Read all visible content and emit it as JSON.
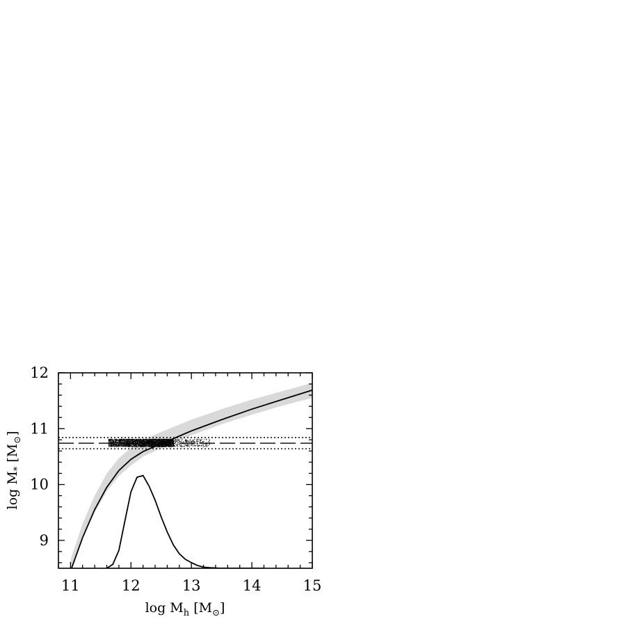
{
  "chart_data": {
    "type": "line",
    "xlabel": "log M_h [M_⊙]",
    "ylabel": "log M_* [M_⊙]",
    "xlabel_parts": {
      "main": "log M",
      "sub": "h",
      "unit_open": " [M",
      "unit_sub": "⊙",
      "unit_close": "]"
    },
    "ylabel_parts": {
      "main": "log M",
      "sub": "*",
      "unit_open": " [M",
      "unit_sub": "⊙",
      "unit_close": "]"
    },
    "xlim": [
      10.8,
      15.0
    ],
    "ylim": [
      8.5,
      12.0
    ],
    "x_ticks": [
      "11",
      "12",
      "13",
      "14",
      "15"
    ],
    "y_ticks": [
      "9",
      "10",
      "11",
      "12"
    ],
    "x_tick_values": [
      11,
      12,
      13,
      14,
      15
    ],
    "y_tick_values": [
      9,
      10,
      11,
      12
    ],
    "grid": false,
    "series": [
      {
        "kind": "band",
        "color": "#d9d9d9",
        "x": [
          11.0,
          11.2,
          11.4,
          11.6,
          11.8,
          12.0,
          12.2,
          12.5,
          13.0,
          13.5,
          14.0,
          14.5,
          15.0
        ],
        "upper": [
          8.65,
          9.3,
          9.8,
          10.2,
          10.47,
          10.66,
          10.8,
          10.94,
          11.16,
          11.35,
          11.52,
          11.67,
          11.82
        ],
        "lower": [
          8.4,
          9.05,
          9.5,
          9.88,
          10.15,
          10.34,
          10.5,
          10.65,
          10.88,
          11.08,
          11.25,
          11.41,
          11.55
        ]
      },
      {
        "kind": "line",
        "color": "#000000",
        "x": [
          11.0,
          11.2,
          11.4,
          11.6,
          11.8,
          12.0,
          12.2,
          12.5,
          13.0,
          13.5,
          14.0,
          14.5,
          15.0
        ],
        "y": [
          8.45,
          9.05,
          9.55,
          9.95,
          10.25,
          10.45,
          10.59,
          10.73,
          10.96,
          11.16,
          11.35,
          11.52,
          11.69
        ]
      },
      {
        "kind": "line",
        "color": "#000000",
        "x": [
          11.6,
          11.7,
          11.8,
          11.9,
          12.0,
          12.1,
          12.2,
          12.3,
          12.4,
          12.5,
          12.6,
          12.7,
          12.8,
          12.9,
          13.0,
          13.1,
          13.2,
          13.3,
          13.5,
          13.8,
          14.2
        ],
        "y": [
          8.5,
          8.57,
          8.82,
          9.35,
          9.87,
          10.13,
          10.16,
          9.97,
          9.72,
          9.42,
          9.15,
          8.92,
          8.76,
          8.66,
          8.6,
          8.55,
          8.52,
          8.51,
          8.5,
          8.5,
          8.5
        ]
      },
      {
        "kind": "hline",
        "style": "dashed",
        "color": "#000000",
        "y": 10.74
      },
      {
        "kind": "hline",
        "style": "dotted",
        "color": "#000000",
        "y": 10.84
      },
      {
        "kind": "hline",
        "style": "dotted",
        "color": "#000000",
        "y": 10.64
      },
      {
        "kind": "scatter",
        "color": "#000000",
        "x_range": [
          11.62,
          13.3
        ],
        "x_peak": 12.15,
        "y_range": [
          10.68,
          10.82
        ],
        "point_count": 3500
      }
    ]
  }
}
